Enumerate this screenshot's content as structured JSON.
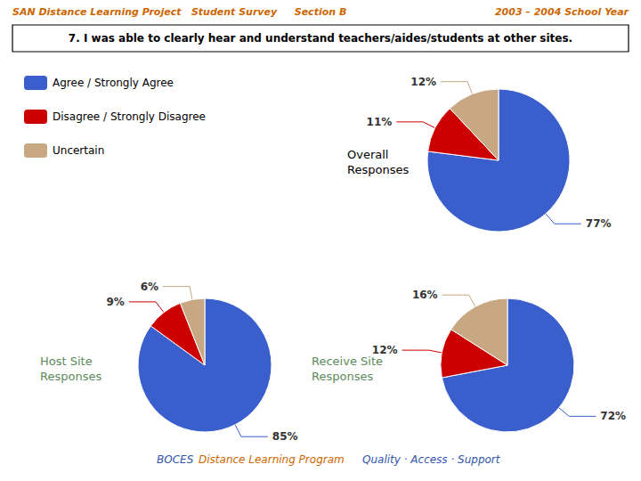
{
  "title": "7. I was able to clearly hear and understand teachers/aides/students at other sites.",
  "annotations": [
    "SAN Distance Learning Project   Student Survey",
    "Section B",
    "2003 – 2004 School Year",
    "BOCES",
    "Distance Learning Program",
    "Quality · Access · Support"
  ],
  "chart_data": [
    {
      "type": "pie",
      "title": "Overall\nResponses",
      "categories": [
        "Agree / Strongly Agree",
        "Disagree / Strongly Disagree",
        "Uncertain"
      ],
      "values": [
        77,
        11,
        12
      ],
      "value_labels": [
        "77%",
        "11%",
        "12%"
      ],
      "colors": [
        "#3A5FCD",
        "#CC0000",
        "#C8A882"
      ],
      "data_labels": true,
      "legend": "upper left"
    },
    {
      "type": "pie",
      "title": "Host Site\nResponses",
      "categories": [
        "Agree / Strongly Agree",
        "Disagree / Strongly Disagree",
        "Uncertain"
      ],
      "values": [
        85,
        9,
        6
      ],
      "value_labels": [
        "85%",
        "9%",
        "6%"
      ],
      "colors": [
        "#3A5FCD",
        "#CC0000",
        "#C8A882"
      ],
      "data_labels": true
    },
    {
      "type": "pie",
      "title": "Receive Site\nResponses",
      "categories": [
        "Agree / Strongly Agree",
        "Disagree / Strongly Disagree",
        "Uncertain"
      ],
      "values": [
        72,
        12,
        16
      ],
      "value_labels": [
        "72%",
        "12%",
        "16%"
      ],
      "colors": [
        "#3A5FCD",
        "#CC0000",
        "#C8A882"
      ],
      "data_labels": true
    }
  ]
}
